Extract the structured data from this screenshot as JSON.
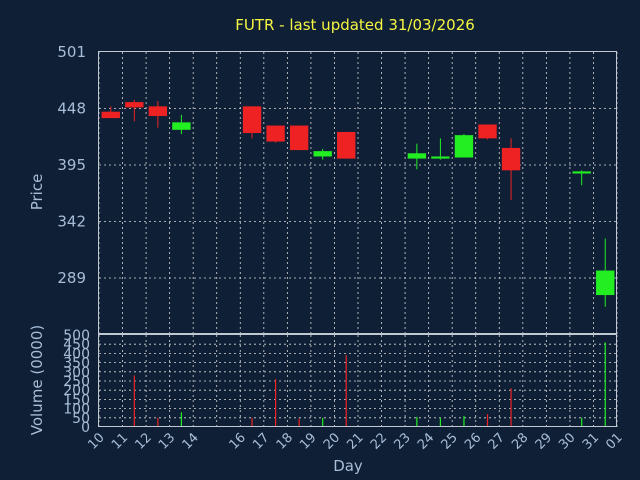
{
  "chart_data": [
    {
      "type": "candlestick",
      "title": "FUTR - last updated 31/03/2026",
      "ylabel": "Price",
      "ylim": [
        262,
        501
      ],
      "yticks": [
        "501",
        "448",
        "395",
        "342",
        "289"
      ],
      "grid": true,
      "colors": {
        "up": "#22ee22",
        "down": "#ee2222"
      },
      "candles": [
        {
          "x": 0,
          "open": 445,
          "high": 450,
          "low": 439,
          "close": 439
        },
        {
          "x": 1,
          "open": 454,
          "high": 456,
          "low": 436,
          "close": 449
        },
        {
          "x": 2,
          "open": 450,
          "high": 455,
          "low": 430,
          "close": 441
        },
        {
          "x": 3,
          "open": 428,
          "high": 442,
          "low": 424,
          "close": 435
        },
        {
          "x": 6,
          "open": 450,
          "high": 450,
          "low": 420,
          "close": 425
        },
        {
          "x": 7,
          "open": 432,
          "high": 432,
          "low": 416,
          "close": 417
        },
        {
          "x": 8,
          "open": 432,
          "high": 432,
          "low": 409,
          "close": 409
        },
        {
          "x": 9,
          "open": 403,
          "high": 410,
          "low": 400,
          "close": 408
        },
        {
          "x": 10,
          "open": 426,
          "high": 426,
          "low": 401,
          "close": 401
        },
        {
          "x": 13,
          "open": 401,
          "high": 415,
          "low": 391,
          "close": 406
        },
        {
          "x": 14,
          "open": 401,
          "high": 420,
          "low": 400,
          "close": 403
        },
        {
          "x": 15,
          "open": 402,
          "high": 424,
          "low": 402,
          "close": 423
        },
        {
          "x": 16,
          "open": 433,
          "high": 433,
          "low": 419,
          "close": 420
        },
        {
          "x": 17,
          "open": 411,
          "high": 420,
          "low": 362,
          "close": 390
        },
        {
          "x": 20,
          "open": 387,
          "high": 390,
          "low": 376,
          "close": 389
        },
        {
          "x": 21,
          "open": 273,
          "high": 326,
          "low": 262,
          "close": 296
        }
      ]
    },
    {
      "type": "bar",
      "ylabel": "Volume (0000)",
      "xlabel": "Day",
      "ylim": [
        0,
        500
      ],
      "yticks": [
        "500",
        "450",
        "400",
        "350",
        "300",
        "250",
        "200",
        "150",
        "100",
        "50",
        "0"
      ],
      "categories": [
        "10",
        "11",
        "12",
        "13",
        "14",
        "16",
        "17",
        "18",
        "19",
        "20",
        "21",
        "22",
        "23",
        "24",
        "25",
        "26",
        "27",
        "28",
        "29",
        "30",
        "31",
        "01"
      ],
      "tick_positions": [
        0,
        1,
        2,
        3,
        4,
        6,
        7,
        8,
        9,
        10,
        11,
        12,
        13,
        14,
        15,
        16,
        17,
        18,
        19,
        20,
        21,
        22
      ],
      "bars": [
        {
          "x": 1,
          "value": 280,
          "direction": "down"
        },
        {
          "x": 2,
          "value": 50,
          "direction": "down"
        },
        {
          "x": 3,
          "value": 80,
          "direction": "up"
        },
        {
          "x": 6,
          "value": 50,
          "direction": "down"
        },
        {
          "x": 7,
          "value": 260,
          "direction": "down"
        },
        {
          "x": 8,
          "value": 45,
          "direction": "down"
        },
        {
          "x": 9,
          "value": 50,
          "direction": "up"
        },
        {
          "x": 10,
          "value": 390,
          "direction": "down"
        },
        {
          "x": 13,
          "value": 55,
          "direction": "up"
        },
        {
          "x": 14,
          "value": 50,
          "direction": "up"
        },
        {
          "x": 15,
          "value": 60,
          "direction": "up"
        },
        {
          "x": 16,
          "value": 70,
          "direction": "down"
        },
        {
          "x": 17,
          "value": 210,
          "direction": "down"
        },
        {
          "x": 20,
          "value": 50,
          "direction": "up"
        },
        {
          "x": 21,
          "value": 460,
          "direction": "up"
        }
      ]
    }
  ]
}
